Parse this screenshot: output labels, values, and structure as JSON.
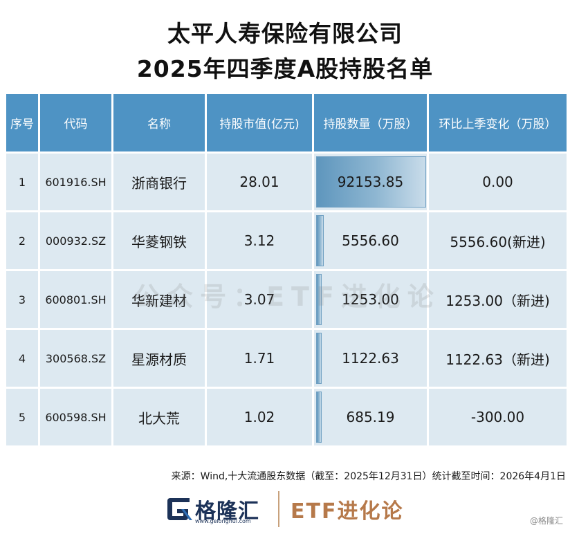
{
  "title": {
    "line1": "太平人寿保险有限公司",
    "line2": "2025年四季度A股持股名单"
  },
  "table": {
    "headers": [
      "序号",
      "代码",
      "名称",
      "持股市值(亿元)",
      "持股数量（万股）",
      "环比上季变化（万股）"
    ],
    "rows": [
      {
        "idx": "1",
        "code": "601916.SH",
        "name": "浙商银行",
        "value": "28.01",
        "shares": "92153.85",
        "shares_num": 92153.85,
        "change": "0.00",
        "trend": "flat"
      },
      {
        "idx": "2",
        "code": "000932.SZ",
        "name": "华菱钢铁",
        "value": "3.12",
        "shares": "5556.60",
        "shares_num": 5556.6,
        "change": "5556.60(新进)",
        "trend": "up"
      },
      {
        "idx": "3",
        "code": "600801.SH",
        "name": "华新建材",
        "value": "3.07",
        "shares": "1253.00",
        "shares_num": 1253.0,
        "change": "1253.00（新进)",
        "trend": "up"
      },
      {
        "idx": "4",
        "code": "300568.SZ",
        "name": "星源材质",
        "value": "1.71",
        "shares": "1122.63",
        "shares_num": 1122.63,
        "change": "1122.63（新进)",
        "trend": "up"
      },
      {
        "idx": "5",
        "code": "600598.SH",
        "name": "北大荒",
        "value": "1.02",
        "shares": "685.19",
        "shares_num": 685.19,
        "change": "-300.00",
        "trend": "down"
      }
    ]
  },
  "watermark": "公众号：ETF进化论",
  "source": "来源：Wind,十大流通股东数据（截至：2025年12月31日）统计截至时间：2026年4月1日",
  "footer": {
    "logo_text": "格隆汇",
    "logo_url": "www.gelonghui.com",
    "brand": "ETF进化论",
    "badge": "@格隆汇"
  },
  "colors": {
    "header_bg": "#4e93c4",
    "cell_bg": "#dde9f1",
    "up": "#e0563f",
    "down": "#1e9fb2"
  }
}
